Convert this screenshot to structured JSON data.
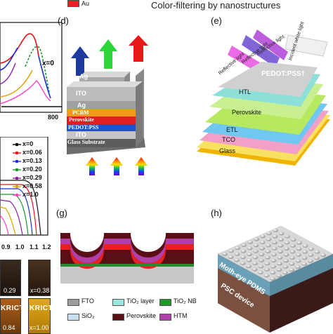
{
  "header": "Color-filtering by nanostructures",
  "panels": {
    "d": "(d)",
    "e": "(e)",
    "g": "(g)",
    "h": "(h)"
  },
  "panel_a": {
    "x_label": "x=0",
    "axis_tick": "800"
  },
  "panel_b": {
    "legend": [
      {
        "label": "x=0",
        "color": "#000000"
      },
      {
        "label": "x=0.06",
        "color": "#e8131a"
      },
      {
        "label": "x=0.13",
        "color": "#1b2fd6"
      },
      {
        "label": "x=0.20",
        "color": "#1a9a2e"
      },
      {
        "label": "x=0.29",
        "color": "#8b1fa8"
      },
      {
        "label": "x=0.58",
        "color": "#e0a000"
      },
      {
        "label": "x=1.0",
        "color": "#ff40c0"
      }
    ],
    "x_ticks": [
      "0.9",
      "1.0",
      "1.1",
      "1.2"
    ]
  },
  "photos": {
    "p1": "0.29",
    "p2": "x=0.38",
    "p3_label": "KRICT",
    "p3_value": "0.84",
    "p4_label": "KRICT",
    "p4_value": "x=1.00"
  },
  "panel_d": {
    "layers": [
      "Ag",
      "ITO",
      "Ag",
      "PCBM",
      "Perovskite",
      "PEDOT:PSS",
      "ITO",
      "Glass Substrate"
    ],
    "arrow_colors_top": [
      "#1f3a9e",
      "#2fd63a",
      "#e81818"
    ]
  },
  "panel_e": {
    "layers": [
      "PEDOT:PSS†",
      "HTL",
      "Perovskite",
      "ETL",
      "TCO",
      "Glass"
    ],
    "beams": [
      "Reflective light",
      "Reflective light",
      "Reflective light",
      "Incident white light"
    ]
  },
  "panel_g": {
    "legend": [
      {
        "label": "FTO",
        "color": "#9c9c9c"
      },
      {
        "label": "TiO₂ layer",
        "color": "#9ee6e0"
      },
      {
        "label": "TiO₂ NB",
        "color": "#1f9a2a"
      },
      {
        "label": "SiO₂",
        "color": "#c8dff0"
      },
      {
        "label": "Perovskite",
        "color": "#5a0f17"
      },
      {
        "label": "HTM",
        "color": "#b040a8"
      },
      {
        "label": "Au",
        "color": "#e82020"
      }
    ]
  },
  "panel_h": {
    "labels": [
      "Moth-eye PDMS",
      "PSC device"
    ]
  }
}
